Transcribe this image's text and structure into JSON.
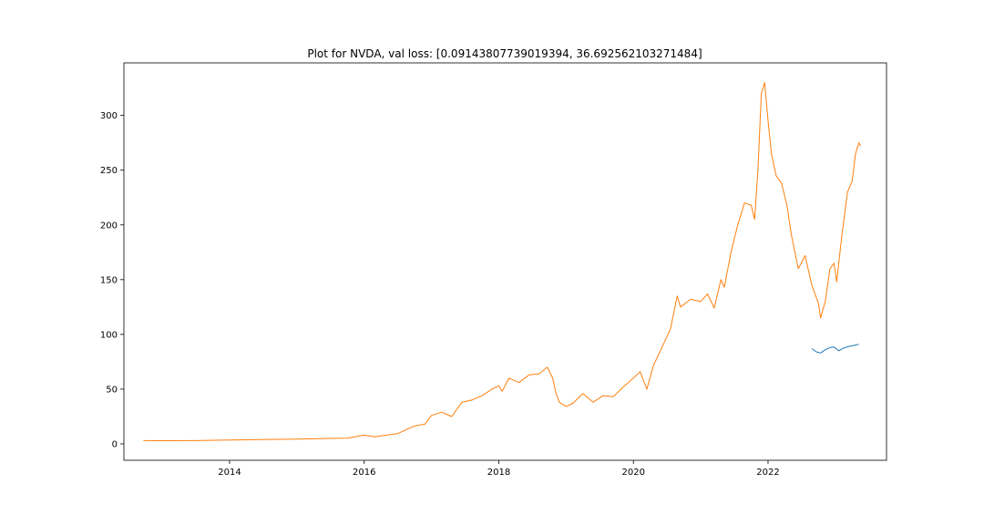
{
  "chart_data": {
    "type": "line",
    "title": "Plot for NVDA, val loss: [0.09143807739019394, 36.692562103271484]",
    "xlabel": "",
    "ylabel": "",
    "xlim": [
      2012.43,
      2023.76
    ],
    "ylim": [
      -15,
      348
    ],
    "x_ticks": [
      2014,
      2016,
      2018,
      2020,
      2022
    ],
    "x_tick_labels": [
      "2014",
      "2016",
      "2018",
      "2020",
      "2022"
    ],
    "y_ticks": [
      0,
      50,
      100,
      150,
      200,
      250,
      300
    ],
    "y_tick_labels": [
      "0",
      "50",
      "100",
      "150",
      "200",
      "250",
      "300"
    ],
    "grid": false,
    "legend": "none",
    "series": [
      {
        "color": "#ff7f0e",
        "points": [
          [
            2012.72,
            3.0
          ],
          [
            2013.0,
            2.9
          ],
          [
            2013.5,
            3.0
          ],
          [
            2014.0,
            3.5
          ],
          [
            2014.5,
            4.0
          ],
          [
            2015.0,
            4.3
          ],
          [
            2015.5,
            5.0
          ],
          [
            2015.75,
            5.2
          ],
          [
            2016.0,
            8.0
          ],
          [
            2016.15,
            6.5
          ],
          [
            2016.5,
            9.5
          ],
          [
            2016.75,
            16.5
          ],
          [
            2016.9,
            18.0
          ],
          [
            2017.0,
            26.0
          ],
          [
            2017.15,
            29.0
          ],
          [
            2017.3,
            25.0
          ],
          [
            2017.45,
            38.0
          ],
          [
            2017.6,
            40.0
          ],
          [
            2017.75,
            44.0
          ],
          [
            2017.9,
            50.0
          ],
          [
            2018.0,
            53.0
          ],
          [
            2018.05,
            48.0
          ],
          [
            2018.15,
            60.0
          ],
          [
            2018.3,
            56.0
          ],
          [
            2018.45,
            63.0
          ],
          [
            2018.6,
            64.0
          ],
          [
            2018.72,
            70.0
          ],
          [
            2018.8,
            60.0
          ],
          [
            2018.85,
            46.0
          ],
          [
            2018.9,
            38.0
          ],
          [
            2019.0,
            34.0
          ],
          [
            2019.1,
            37.0
          ],
          [
            2019.25,
            46.0
          ],
          [
            2019.4,
            38.0
          ],
          [
            2019.55,
            44.0
          ],
          [
            2019.7,
            43.0
          ],
          [
            2019.85,
            52.0
          ],
          [
            2020.0,
            60.0
          ],
          [
            2020.1,
            66.0
          ],
          [
            2020.2,
            50.0
          ],
          [
            2020.3,
            72.0
          ],
          [
            2020.4,
            85.0
          ],
          [
            2020.55,
            105.0
          ],
          [
            2020.65,
            135.0
          ],
          [
            2020.7,
            125.0
          ],
          [
            2020.85,
            132.0
          ],
          [
            2021.0,
            130.0
          ],
          [
            2021.1,
            137.0
          ],
          [
            2021.2,
            124.0
          ],
          [
            2021.3,
            150.0
          ],
          [
            2021.35,
            143.0
          ],
          [
            2021.45,
            175.0
          ],
          [
            2021.55,
            200.0
          ],
          [
            2021.65,
            220.0
          ],
          [
            2021.75,
            218.0
          ],
          [
            2021.8,
            205.0
          ],
          [
            2021.85,
            250.0
          ],
          [
            2021.9,
            320.0
          ],
          [
            2021.95,
            330.0
          ],
          [
            2022.0,
            295.0
          ],
          [
            2022.05,
            265.0
          ],
          [
            2022.12,
            245.0
          ],
          [
            2022.2,
            238.0
          ],
          [
            2022.28,
            218.0
          ],
          [
            2022.35,
            190.0
          ],
          [
            2022.45,
            160.0
          ],
          [
            2022.55,
            172.0
          ],
          [
            2022.65,
            145.0
          ],
          [
            2022.75,
            128.0
          ],
          [
            2022.78,
            115.0
          ],
          [
            2022.85,
            130.0
          ],
          [
            2022.92,
            160.0
          ],
          [
            2022.98,
            165.0
          ],
          [
            2023.02,
            148.0
          ],
          [
            2023.1,
            192.0
          ],
          [
            2023.18,
            230.0
          ],
          [
            2023.25,
            240.0
          ],
          [
            2023.3,
            265.0
          ],
          [
            2023.35,
            275.0
          ],
          [
            2023.38,
            272.0
          ]
        ]
      },
      {
        "color": "#1f77b4",
        "points": [
          [
            2022.65,
            87.0
          ],
          [
            2022.72,
            84.0
          ],
          [
            2022.78,
            83.0
          ],
          [
            2022.85,
            86.0
          ],
          [
            2022.92,
            88.0
          ],
          [
            2022.98,
            88.5
          ],
          [
            2023.05,
            85.0
          ],
          [
            2023.12,
            87.5
          ],
          [
            2023.2,
            89.0
          ],
          [
            2023.28,
            90.0
          ],
          [
            2023.35,
            91.0
          ]
        ]
      }
    ]
  }
}
